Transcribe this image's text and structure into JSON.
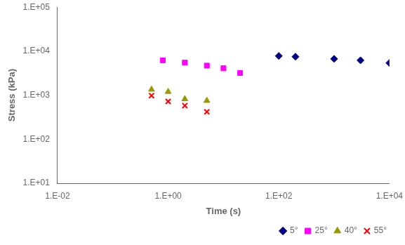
{
  "chart_data": {
    "type": "scatter",
    "xlabel": "Time (s)",
    "ylabel": "Stress (kPa)",
    "log": true,
    "grid": false,
    "legend": "lower right",
    "xlim": [
      0.01,
      10000
    ],
    "ylim": [
      10,
      100000
    ],
    "xticks": [
      {
        "value": 0.01,
        "label": "1.E-02"
      },
      {
        "value": 1.0,
        "label": "1.E+00"
      },
      {
        "value": 100,
        "label": "1.E+02"
      },
      {
        "value": 10000,
        "label": "1.E+04"
      }
    ],
    "yticks": [
      {
        "value": 10,
        "label": "1.E+01"
      },
      {
        "value": 100,
        "label": "1.E+02"
      },
      {
        "value": 1000,
        "label": "1.E+03"
      },
      {
        "value": 10000,
        "label": "1.E+04"
      },
      {
        "value": 100000,
        "label": "1.E+05"
      }
    ],
    "series": [
      {
        "name": "5°",
        "color": "#00008B",
        "marker": "diamond",
        "x": [
          100,
          200,
          1000,
          3000,
          10000
        ],
        "values": [
          7800,
          7500,
          6700,
          6200,
          5400
        ]
      },
      {
        "name": "25°",
        "color": "#FF00FF",
        "marker": "square",
        "x": [
          0.8,
          2,
          5,
          10,
          20
        ],
        "values": [
          6200,
          5500,
          4700,
          4100,
          3200
        ]
      },
      {
        "name": "40°",
        "color": "#999900",
        "marker": "triangle",
        "x": [
          0.5,
          1.0,
          2.0,
          5.0
        ],
        "values": [
          1350,
          1200,
          820,
          750
        ]
      },
      {
        "name": "55°",
        "color": "#FF0000",
        "marker": "x",
        "x": [
          0.5,
          1.0,
          2.0,
          5.0
        ],
        "values": [
          980,
          720,
          580,
          420
        ]
      }
    ]
  }
}
